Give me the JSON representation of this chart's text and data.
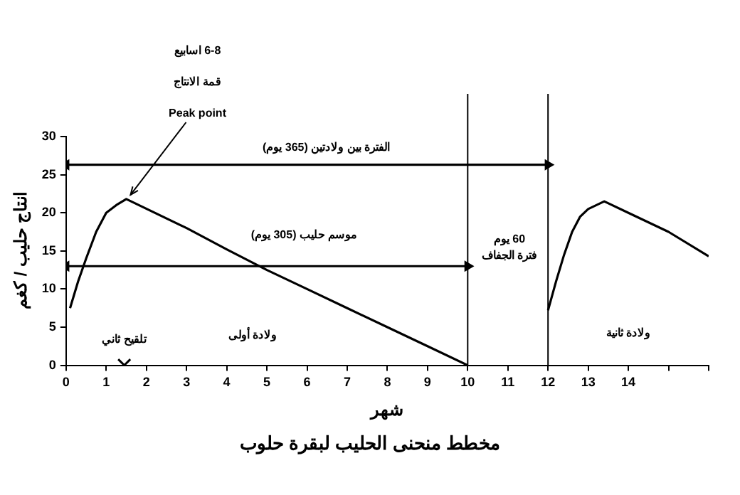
{
  "chart_data": {
    "type": "line",
    "title": "مخطط منحنى الحليب لبقرة حلوب",
    "xlabel": "شهر",
    "ylabel": "انتاج حليب / كغم",
    "xlim": [
      0,
      16
    ],
    "xticks": [
      0,
      1,
      2,
      3,
      4,
      5,
      6,
      7,
      8,
      9,
      10,
      11,
      12,
      13,
      14,
      {
        "value": 15,
        "label": null
      },
      {
        "value": 16,
        "label": null
      }
    ],
    "ylim": [
      0,
      30
    ],
    "yticks": [
      0,
      5,
      10,
      15,
      20,
      25,
      30
    ],
    "grid": false,
    "legend": false,
    "line_style": "solid",
    "series": [
      {
        "color": "#000000",
        "marker": "none",
        "x": [
          0.1,
          0.3,
          0.5,
          0.75,
          1,
          1.25,
          1.5,
          3,
          4,
          5,
          6,
          7,
          8,
          9,
          10
        ],
        "values": [
          7.5,
          11,
          14,
          17.5,
          20,
          21,
          21.8,
          18,
          15.2,
          12.5,
          10,
          7.5,
          5,
          2.5,
          0
        ]
      },
      {
        "color": "#000000",
        "marker": "none",
        "x": [
          12,
          12.2,
          12.4,
          12.6,
          12.8,
          13,
          13.4,
          14,
          15,
          16
        ],
        "values": [
          7.2,
          11,
          14.5,
          17.5,
          19.5,
          20.5,
          21.5,
          20,
          17.5,
          14.3
        ]
      },
      {
        "color": "#000000",
        "marker": "triangle",
        "x": [
          0,
          12
        ],
        "values": [
          26.3,
          26.3
        ]
      },
      {
        "color": "#000000",
        "marker": "triangle",
        "x": [
          0,
          10
        ],
        "values": [
          13,
          13
        ]
      },
      {
        "type": "scatter",
        "color": "#000000",
        "marker": "cross",
        "x": [
          1.45
        ],
        "values": [
          0
        ]
      }
    ],
    "ref_lines": [
      {
        "axis": "x",
        "value": 10,
        "color": "#000000"
      },
      {
        "axis": "x",
        "value": 12,
        "color": "#000000"
      }
    ],
    "annotations": [
      "6-8 اسابيع",
      "قمة الانتاج",
      {
        "text": "Peak point",
        "x": 1.5,
        "y": 21.8
      },
      "الفترة بين ولادتين (365 يوم)",
      "موسم حليب (305 يوم)",
      "60 يوم",
      "فترة الجفاف",
      {
        "text": "تلقيح ثاني",
        "x": 1.45,
        "y": 0
      },
      "ولادة أولى",
      "ولادة ثانية"
    ]
  }
}
